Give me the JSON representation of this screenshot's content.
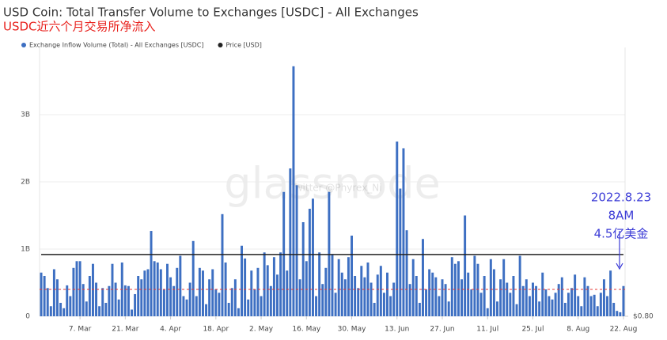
{
  "chart_data": {
    "type": "bar",
    "title": "USD Coin: Total Transfer Volume to Exchanges [USDC] - All Exchanges",
    "subtitle": "USDC近六个月交易所净流入",
    "watermark": "glassnode",
    "credit": "Twitter @Phyrex_Ni",
    "categories": [
      null,
      null,
      null,
      null,
      null,
      null,
      null,
      null,
      null,
      null,
      null,
      null,
      "7. Mar",
      null,
      null,
      null,
      null,
      null,
      null,
      null,
      null,
      null,
      null,
      null,
      null,
      null,
      "21. Mar",
      null,
      null,
      null,
      null,
      null,
      null,
      null,
      null,
      null,
      null,
      null,
      null,
      null,
      "4. Apr",
      null,
      null,
      null,
      null,
      null,
      null,
      null,
      null,
      null,
      null,
      null,
      null,
      null,
      "18. Apr",
      null,
      null,
      null,
      null,
      null,
      null,
      null,
      null,
      null,
      null,
      null,
      null,
      null,
      "2. May",
      null,
      null,
      null,
      null,
      null,
      null,
      null,
      null,
      null,
      null,
      null,
      null,
      null,
      "16. May",
      null,
      null,
      null,
      null,
      null,
      null,
      null,
      null,
      null,
      null,
      null,
      null,
      null,
      "30. May",
      null,
      null,
      null,
      null,
      null,
      null,
      null,
      null,
      null,
      null,
      null,
      null,
      null,
      "13. Jun",
      null,
      null,
      null,
      null,
      null,
      null,
      null,
      null,
      null,
      null,
      null,
      null,
      null,
      "27. Jun",
      null,
      null,
      null,
      null,
      null,
      null,
      null,
      null,
      null,
      null,
      null,
      null,
      null,
      "11. Jul",
      null,
      null,
      null,
      null,
      null,
      null,
      null,
      null,
      null,
      null,
      null,
      null,
      null,
      "25. Jul",
      null,
      null,
      null,
      null,
      null,
      null,
      null,
      null,
      null,
      null,
      null,
      null,
      null,
      "8. Aug",
      null,
      null,
      null,
      null,
      null,
      null,
      null,
      null,
      null,
      null,
      null,
      null,
      null,
      "22. Aug"
    ],
    "series": [
      {
        "name": "Exchange Inflow Volume (Total) - All Exchanges [USDC]",
        "color": "#3d6fc2",
        "values": [
          0.65,
          0.6,
          0.42,
          0.15,
          0.7,
          0.55,
          0.2,
          0.12,
          0.46,
          0.3,
          0.72,
          0.82,
          0.82,
          0.48,
          0.22,
          0.6,
          0.78,
          0.5,
          0.15,
          0.42,
          0.2,
          0.45,
          0.78,
          0.5,
          0.25,
          0.8,
          0.46,
          0.45,
          0.1,
          0.33,
          0.6,
          0.55,
          0.68,
          0.7,
          1.27,
          0.82,
          0.8,
          0.7,
          0.4,
          0.78,
          0.58,
          0.45,
          0.72,
          0.9,
          0.3,
          0.25,
          0.5,
          1.12,
          0.3,
          0.72,
          0.68,
          0.18,
          0.55,
          0.7,
          0.4,
          0.35,
          1.52,
          0.8,
          0.2,
          0.42,
          0.55,
          0.12,
          1.05,
          0.86,
          0.25,
          0.68,
          0.4,
          0.72,
          0.3,
          0.95,
          0.76,
          0.45,
          0.88,
          0.62,
          0.95,
          1.85,
          0.68,
          2.2,
          3.72,
          1.95,
          0.55,
          1.4,
          0.82,
          1.6,
          1.75,
          0.3,
          0.95,
          0.48,
          0.72,
          1.85,
          0.92,
          0.35,
          0.85,
          0.65,
          0.55,
          0.88,
          1.2,
          0.6,
          0.42,
          0.75,
          0.58,
          0.8,
          0.5,
          0.2,
          0.62,
          0.75,
          0.35,
          0.65,
          0.3,
          0.5,
          2.6,
          1.9,
          2.5,
          1.28,
          0.48,
          0.85,
          0.6,
          0.2,
          1.15,
          0.4,
          0.7,
          0.65,
          0.58,
          0.3,
          0.55,
          0.48,
          0.22,
          0.88,
          0.78,
          0.82,
          0.55,
          1.5,
          0.65,
          0.4,
          0.9,
          0.78,
          0.35,
          0.6,
          0.12,
          0.85,
          0.7,
          0.22,
          0.55,
          0.85,
          0.5,
          0.35,
          0.6,
          0.18,
          0.9,
          0.45,
          0.55,
          0.3,
          0.5,
          0.45,
          0.22,
          0.65,
          0.4,
          0.3,
          0.25,
          0.35,
          0.48,
          0.58,
          0.2,
          0.35,
          0.42,
          0.62,
          0.3,
          0.15,
          0.58,
          0.45,
          0.3,
          0.32,
          0.15,
          0.35,
          0.55,
          0.3,
          0.68,
          0.2,
          0.08,
          0.06,
          0.45
        ]
      },
      {
        "name": "Price [USD]",
        "color": "#222222",
        "axis": "y2",
        "values": [
          1,
          1,
          1,
          1,
          1,
          1,
          1,
          1,
          1,
          1,
          1,
          1,
          1,
          1,
          1,
          1,
          1,
          1,
          1,
          1,
          1,
          1,
          1,
          1,
          1,
          1,
          1,
          1,
          1,
          1,
          1,
          1,
          1,
          1,
          1,
          1,
          1,
          1,
          1,
          1,
          1,
          1,
          1,
          1,
          1,
          1,
          1,
          1,
          1,
          1,
          1,
          1,
          1,
          1,
          1,
          1,
          1,
          1,
          1,
          1,
          1,
          1,
          1,
          1,
          1,
          1,
          1,
          1,
          1,
          1,
          1,
          1,
          1,
          1,
          1,
          1,
          1,
          1,
          1,
          1,
          1,
          1,
          1,
          1,
          1,
          1,
          1,
          1,
          1,
          1,
          1,
          1,
          1,
          1,
          1,
          1,
          1,
          1,
          1,
          1,
          1,
          1,
          1,
          1,
          1,
          1,
          1,
          1,
          1,
          1,
          1,
          1,
          1,
          1,
          1,
          1,
          1,
          1,
          1,
          1,
          1,
          1,
          1,
          1,
          1,
          1,
          1,
          1,
          1,
          1,
          1,
          1,
          1,
          1,
          1,
          1,
          1,
          1,
          1,
          1,
          1,
          1,
          1,
          1,
          1,
          1,
          1,
          1,
          1,
          1,
          1,
          1,
          1,
          1,
          1,
          1,
          1,
          1,
          1,
          1,
          1,
          1,
          1,
          1,
          1,
          1,
          1,
          1,
          1,
          1,
          1,
          1,
          1,
          1,
          1,
          1,
          1,
          1,
          1,
          1,
          1
        ]
      }
    ],
    "ylim": [
      0,
      4
    ],
    "yticks": [
      0,
      {
        "value": 1,
        "label": "1B"
      },
      {
        "value": 2,
        "label": "2B"
      },
      {
        "value": 3,
        "label": "3B"
      }
    ],
    "y2lim": [
      0.8,
      1.67
    ],
    "y2ticks": [
      {
        "value": 0.8,
        "label": "$0.80"
      }
    ],
    "reference_line": {
      "value": 0.4,
      "color": "#e53935"
    },
    "annotations": [
      "2022.8.23",
      "8AM",
      "4.5亿美金"
    ],
    "annotation_color": "#3b3bd6",
    "legend": "top-left"
  }
}
